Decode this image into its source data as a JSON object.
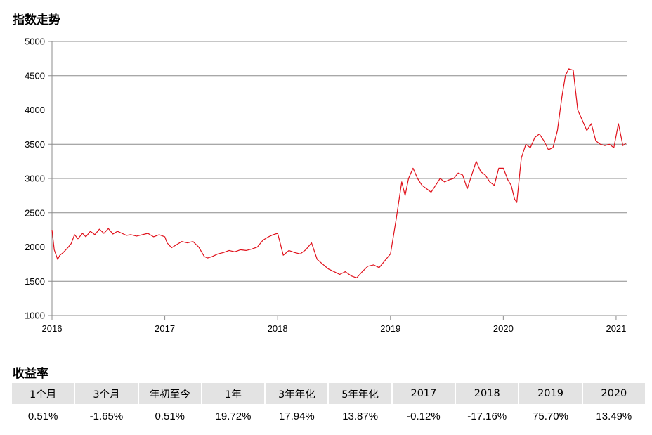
{
  "chart_title": "指数走势",
  "returns_title": "收益率",
  "chart_data": {
    "type": "line",
    "title": "指数走势",
    "xlabel": "",
    "ylabel": "",
    "x_tick_labels": [
      "2016",
      "2017",
      "2018",
      "2019",
      "2020",
      "2021"
    ],
    "xlim": [
      2016.0,
      2021.1
    ],
    "y_tick_labels": [
      "1000",
      "1500",
      "2000",
      "2500",
      "3000",
      "3500",
      "4000",
      "4500",
      "5000"
    ],
    "ylim": [
      1000,
      5000
    ],
    "grid": true,
    "line_color": "#e0101a",
    "series": [
      {
        "name": "",
        "x": [
          2016.0,
          2016.02,
          2016.05,
          2016.07,
          2016.1,
          2016.14,
          2016.17,
          2016.2,
          2016.23,
          2016.27,
          2016.3,
          2016.34,
          2016.38,
          2016.42,
          2016.46,
          2016.5,
          2016.54,
          2016.58,
          2016.62,
          2016.66,
          2016.7,
          2016.75,
          2016.8,
          2016.85,
          2016.9,
          2016.95,
          2017.0,
          2017.02,
          2017.06,
          2017.1,
          2017.15,
          2017.2,
          2017.25,
          2017.3,
          2017.35,
          2017.38,
          2017.42,
          2017.47,
          2017.52,
          2017.57,
          2017.62,
          2017.67,
          2017.72,
          2017.77,
          2017.82,
          2017.87,
          2017.92,
          2017.96,
          2018.0,
          2018.05,
          2018.1,
          2018.15,
          2018.2,
          2018.25,
          2018.3,
          2018.35,
          2018.4,
          2018.45,
          2018.5,
          2018.55,
          2018.6,
          2018.65,
          2018.7,
          2018.75,
          2018.8,
          2018.85,
          2018.9,
          2018.95,
          2019.0,
          2019.05,
          2019.1,
          2019.13,
          2019.16,
          2019.2,
          2019.24,
          2019.28,
          2019.32,
          2019.36,
          2019.4,
          2019.44,
          2019.48,
          2019.52,
          2019.56,
          2019.6,
          2019.64,
          2019.68,
          2019.72,
          2019.76,
          2019.8,
          2019.84,
          2019.88,
          2019.92,
          2019.96,
          2020.0,
          2020.04,
          2020.07,
          2020.1,
          2020.12,
          2020.16,
          2020.2,
          2020.24,
          2020.28,
          2020.32,
          2020.36,
          2020.4,
          2020.44,
          2020.48,
          2020.52,
          2020.55,
          2020.58,
          2020.62,
          2020.66,
          2020.7,
          2020.74,
          2020.78,
          2020.82,
          2020.86,
          2020.9,
          2020.94,
          2020.98,
          2021.02,
          2021.06,
          2021.09
        ],
        "y": [
          2250,
          1960,
          1820,
          1880,
          1920,
          1990,
          2050,
          2180,
          2120,
          2200,
          2150,
          2230,
          2180,
          2260,
          2200,
          2270,
          2190,
          2230,
          2200,
          2170,
          2180,
          2160,
          2180,
          2200,
          2150,
          2180,
          2150,
          2060,
          1990,
          2030,
          2080,
          2060,
          2080,
          2000,
          1860,
          1840,
          1860,
          1900,
          1920,
          1950,
          1930,
          1960,
          1950,
          1970,
          2000,
          2100,
          2150,
          2180,
          2200,
          1880,
          1950,
          1920,
          1900,
          1960,
          2060,
          1820,
          1750,
          1680,
          1640,
          1600,
          1640,
          1580,
          1550,
          1640,
          1720,
          1740,
          1700,
          1800,
          1900,
          2400,
          2950,
          2750,
          3000,
          3150,
          3000,
          2900,
          2850,
          2800,
          2900,
          3000,
          2950,
          2980,
          3000,
          3080,
          3050,
          2850,
          3050,
          3250,
          3100,
          3050,
          2950,
          2900,
          3150,
          3150,
          2980,
          2900,
          2700,
          2650,
          3300,
          3500,
          3450,
          3600,
          3650,
          3550,
          3420,
          3450,
          3700,
          4200,
          4500,
          4600,
          4580,
          4000,
          3850,
          3700,
          3800,
          3550,
          3500,
          3480,
          3500,
          3450,
          3800,
          3480,
          3520
        ]
      }
    ]
  },
  "returns_table": {
    "headers": [
      "1个月",
      "3个月",
      "年初至今",
      "1年",
      "3年年化",
      "5年年化",
      "2017",
      "2018",
      "2019",
      "2020"
    ],
    "values": [
      "0.51%",
      "-1.65%",
      "0.51%",
      "19.72%",
      "17.94%",
      "13.87%",
      "-0.12%",
      "-17.16%",
      "75.70%",
      "13.49%"
    ]
  }
}
